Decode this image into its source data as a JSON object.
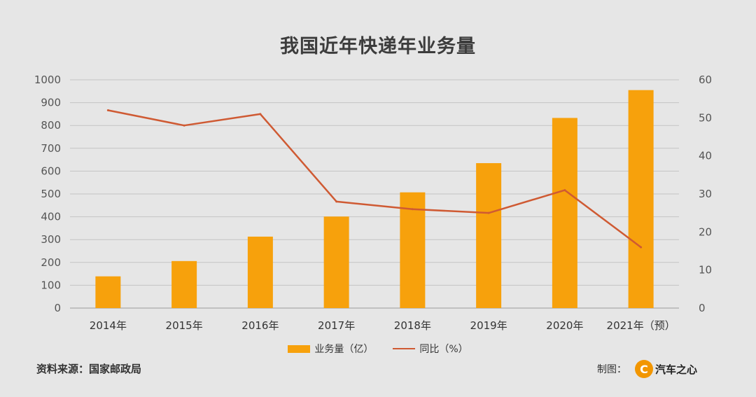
{
  "chart_data": {
    "type": "bar",
    "title": "我国近年快递年业务量",
    "categories": [
      "2014年",
      "2015年",
      "2016年",
      "2017年",
      "2018年",
      "2019年",
      "2020年",
      "2021年（预）"
    ],
    "series": [
      {
        "name": "业务量（亿）",
        "type": "bar",
        "axis": "left",
        "color": "#f7a10c",
        "values": [
          139,
          206,
          313,
          401,
          507,
          635,
          833,
          955
        ]
      },
      {
        "name": "同比（%）",
        "type": "line",
        "axis": "right",
        "color": "#cf5a33",
        "values": [
          52,
          48,
          51,
          28,
          26,
          25,
          31,
          16
        ]
      }
    ],
    "y_left": {
      "min": 0,
      "max": 1000,
      "ticks": [
        0,
        100,
        200,
        300,
        400,
        500,
        600,
        700,
        800,
        900,
        1000
      ]
    },
    "y_right": {
      "min": 0,
      "max": 60,
      "ticks": [
        0,
        10,
        20,
        30,
        40,
        50,
        60
      ]
    },
    "grid": true,
    "legend_position": "bottom"
  },
  "footer": {
    "source": "资料来源：国家邮政局",
    "credit_label": "制图：",
    "brand": "汽车之心",
    "brand_mark": "C"
  }
}
